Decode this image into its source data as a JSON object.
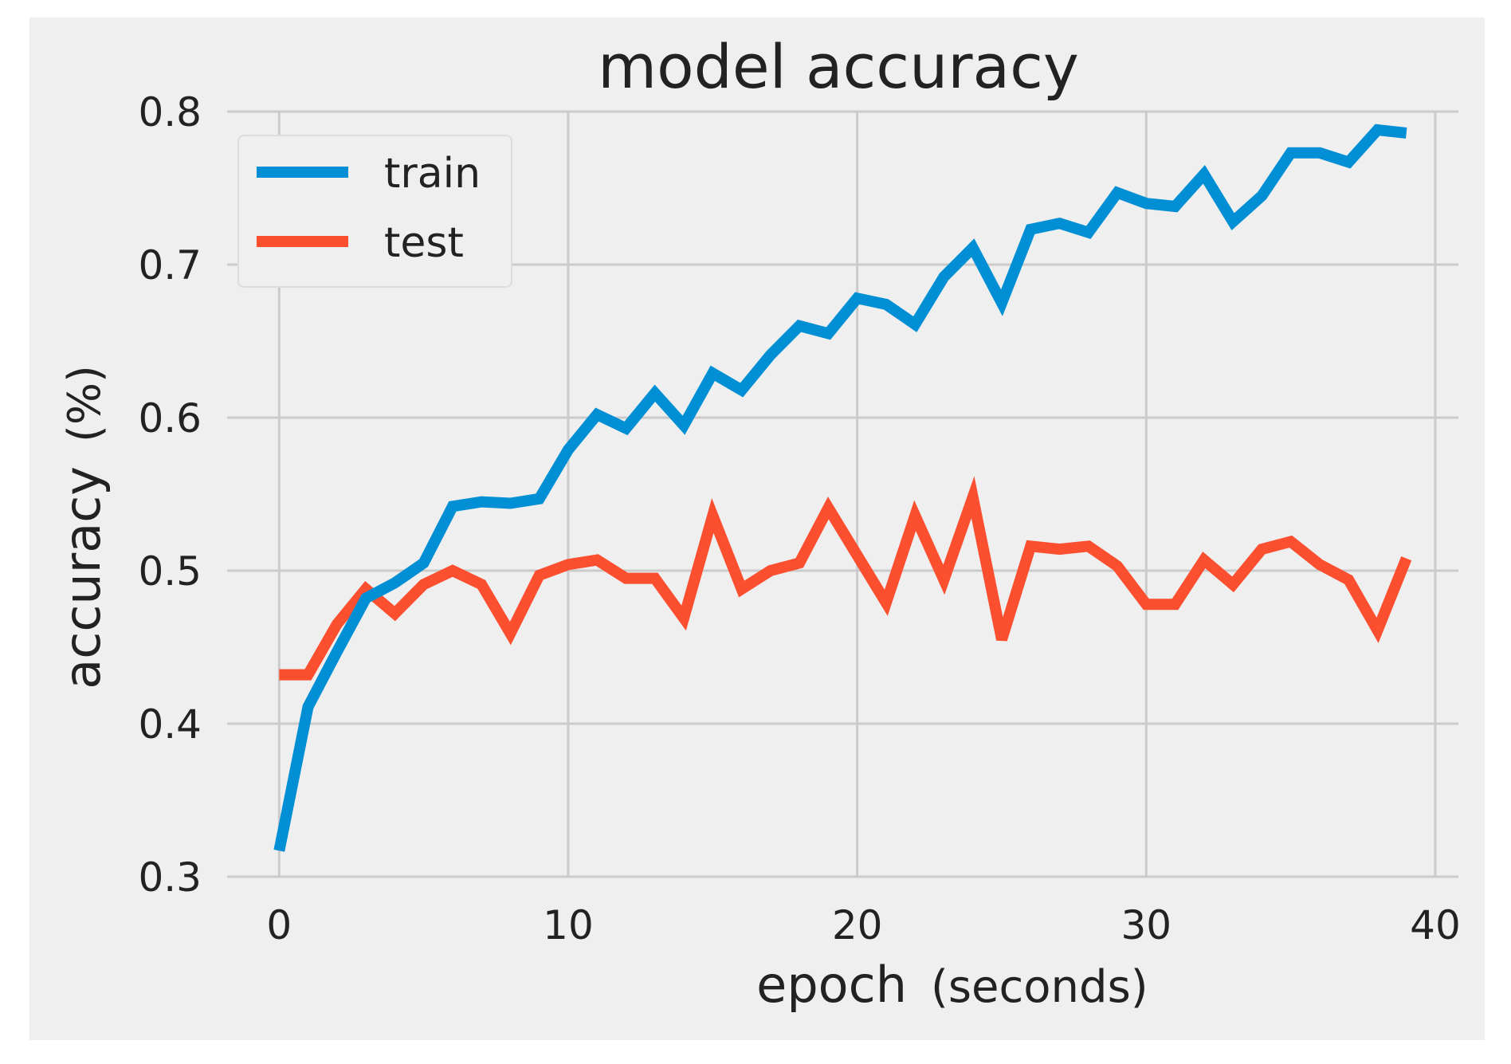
{
  "chart_data": {
    "type": "line",
    "title": "model accuracy",
    "xlabel": "epoch",
    "xlabel_unit": "(seconds)",
    "ylabel": "accuracy",
    "ylabel_unit": "(%)",
    "xlim": [
      -1.8,
      40.8
    ],
    "ylim": [
      0.3,
      0.8
    ],
    "xticks": [
      0,
      10,
      20,
      30,
      40
    ],
    "yticks": [
      0.3,
      0.4,
      0.5,
      0.6,
      0.7,
      0.8
    ],
    "xtick_labels": [
      "0",
      "10",
      "20",
      "30",
      "40"
    ],
    "ytick_labels": [
      "0.3",
      "0.4",
      "0.5",
      "0.6",
      "0.7",
      "0.8"
    ],
    "grid": true,
    "legend_position": "top-left",
    "x": [
      0,
      1,
      2,
      3,
      4,
      5,
      6,
      7,
      8,
      9,
      10,
      11,
      12,
      13,
      14,
      15,
      16,
      17,
      18,
      19,
      20,
      21,
      22,
      23,
      24,
      25,
      26,
      27,
      28,
      29,
      30,
      31,
      32,
      33,
      34,
      35,
      36,
      37,
      38,
      39
    ],
    "series": [
      {
        "name": "train",
        "color": "#008fd5",
        "values": [
          0.317,
          0.411,
          0.447,
          0.482,
          0.492,
          0.505,
          0.542,
          0.545,
          0.544,
          0.547,
          0.579,
          0.602,
          0.593,
          0.616,
          0.595,
          0.629,
          0.618,
          0.641,
          0.66,
          0.655,
          0.678,
          0.674,
          0.661,
          0.692,
          0.711,
          0.675,
          0.723,
          0.727,
          0.721,
          0.747,
          0.74,
          0.738,
          0.759,
          0.728,
          0.745,
          0.773,
          0.773,
          0.767,
          0.788,
          0.786
        ]
      },
      {
        "name": "test",
        "color": "#fc4f30",
        "values": [
          0.432,
          0.432,
          0.465,
          0.488,
          0.472,
          0.491,
          0.5,
          0.491,
          0.459,
          0.497,
          0.504,
          0.507,
          0.495,
          0.495,
          0.469,
          0.536,
          0.488,
          0.5,
          0.505,
          0.541,
          0.51,
          0.479,
          0.536,
          0.494,
          0.548,
          0.455,
          0.516,
          0.514,
          0.516,
          0.503,
          0.478,
          0.478,
          0.507,
          0.491,
          0.514,
          0.519,
          0.504,
          0.494,
          0.461,
          0.508
        ]
      }
    ]
  }
}
